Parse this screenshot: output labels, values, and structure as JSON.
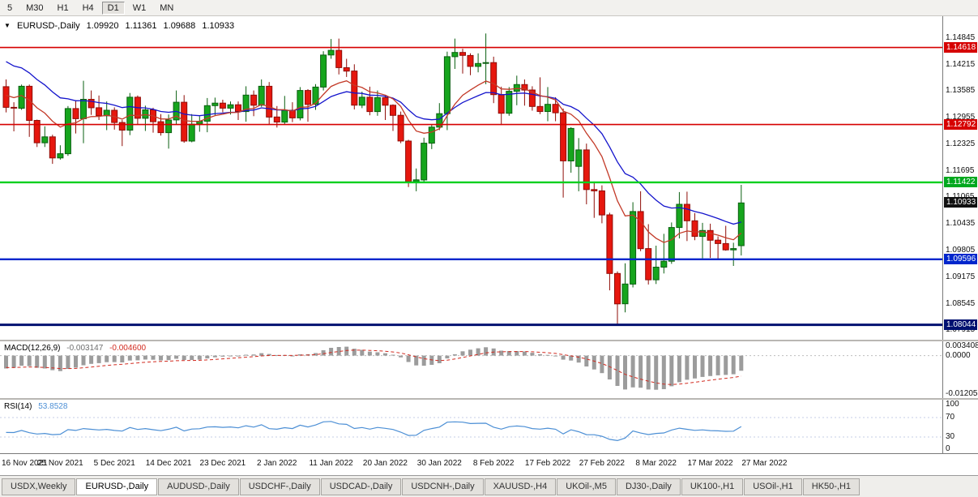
{
  "toolbar": {
    "timeframes": [
      {
        "label": "5",
        "active": false
      },
      {
        "label": "M30",
        "active": false
      },
      {
        "label": "H1",
        "active": false
      },
      {
        "label": "H4",
        "active": false
      },
      {
        "label": "D1",
        "active": true
      },
      {
        "label": "W1",
        "active": false
      },
      {
        "label": "MN",
        "active": false
      }
    ]
  },
  "chart_header": {
    "marker": "▼",
    "symbol": "EURUSD-,Daily",
    "open": "1.09920",
    "high": "1.11361",
    "low": "1.09688",
    "close": "1.10933"
  },
  "price_axis": {
    "labels": [
      "1.14845",
      "1.14215",
      "1.13585",
      "1.12955",
      "1.12325",
      "1.11695",
      "1.11065",
      "1.10435",
      "1.09805",
      "1.09175",
      "1.08545",
      "1.07915"
    ],
    "badges": [
      {
        "text": "1.14618",
        "color": "#D60000",
        "name": "resistance-badge-upper"
      },
      {
        "text": "1.12792",
        "color": "#D60000",
        "name": "resistance-badge-lower"
      },
      {
        "text": "1.11422",
        "color": "#00A81E",
        "name": "level-badge-green"
      },
      {
        "text": "1.10933",
        "color": "#111111",
        "name": "current-price-badge"
      },
      {
        "text": "1.09596",
        "color": "#0026CC",
        "name": "support-badge-blue"
      },
      {
        "text": "1.08044",
        "color": "#001070",
        "name": "support-badge-navy"
      }
    ]
  },
  "hlines": [
    {
      "price": 1.14618,
      "color": "#D60000",
      "width": 1.6
    },
    {
      "price": 1.12792,
      "color": "#D60000",
      "width": 1.6
    },
    {
      "price": 1.11422,
      "color": "#00D01E",
      "width": 2.4
    },
    {
      "price": 1.09596,
      "color": "#0026CC",
      "width": 2.4
    },
    {
      "price": 1.08044,
      "color": "#001070",
      "width": 3
    }
  ],
  "macd_panel": {
    "label": "MACD(12,26,9)",
    "value_main": "-0.003147",
    "value_signal": "-0.004600",
    "axis": [
      "0.003408",
      "0.0000",
      "-0.012058"
    ]
  },
  "rsi_panel": {
    "label": "RSI(14)",
    "value": "53.8528",
    "axis": [
      "100",
      "70",
      "30",
      "0"
    ],
    "levels": [
      70,
      30
    ]
  },
  "time_axis": {
    "labels": [
      "16 Nov 2021",
      "25 Nov 2021",
      "5 Dec 2021",
      "14 Dec 2021",
      "23 Dec 2021",
      "2 Jan 2022",
      "11 Jan 2022",
      "20 Jan 2022",
      "30 Jan 2022",
      "8 Feb 2022",
      "17 Feb 2022",
      "27 Feb 2022",
      "8 Mar 2022",
      "17 Mar 2022",
      "27 Mar 2022"
    ]
  },
  "tabs": [
    {
      "label": "USDX,Weekly",
      "active": false
    },
    {
      "label": "EURUSD-,Daily",
      "active": true
    },
    {
      "label": "AUDUSD-,Daily",
      "active": false
    },
    {
      "label": "USDCHF-,Daily",
      "active": false
    },
    {
      "label": "USDCAD-,Daily",
      "active": false
    },
    {
      "label": "USDCNH-,Daily",
      "active": false
    },
    {
      "label": "XAUUSD-,H4",
      "active": false
    },
    {
      "label": "UKOil-,M5",
      "active": false
    },
    {
      "label": "DJ30-,Daily",
      "active": false
    },
    {
      "label": "UK100-,H1",
      "active": false
    },
    {
      "label": "USOil-,H1",
      "active": false
    },
    {
      "label": "HK50-,H1",
      "active": false
    }
  ],
  "colors": {
    "up": "#16A51D",
    "up_dark": "#0A5F10",
    "down": "#E6170E",
    "down_dark": "#8F0D08",
    "macd_hist": "#9C9C9C",
    "macd_signal": "#D22B20",
    "rsi_line": "#4C8FD5",
    "rsi_level": "#C6CCE4"
  },
  "chart_data": {
    "type": "candlestick",
    "symbol": "EURUSD-",
    "timeframe": "Daily",
    "title": "EURUSD-,Daily  O 1.09920  H 1.11361  L 1.09688  C 1.10933",
    "price_range": [
      1.0769,
      1.1536
    ],
    "macd_range": [
      -0.0131,
      0.0044
    ],
    "rsi_range": [
      0,
      100
    ],
    "indicators": {
      "ma_fast": {
        "type": "ema",
        "period": 10,
        "seed": 1.1355,
        "color": "#C33A28"
      },
      "ma_slow": {
        "type": "ema",
        "period": 20,
        "seed": 1.144,
        "color": "#1414CC"
      },
      "macd": {
        "fast": 12,
        "slow": 26,
        "signal": 9,
        "seed_fast": 1.133,
        "seed_slow": 1.1372,
        "seed_signal": -0.0036
      },
      "rsi": {
        "period": 14,
        "seed_gain": 0.0022,
        "seed_loss": 0.0034
      }
    },
    "ohlc": [
      [
        "2021-11-16",
        1.1369,
        1.1386,
        1.1308,
        1.132
      ],
      [
        "2021-11-17",
        1.132,
        1.1332,
        1.1263,
        1.1318
      ],
      [
        "2021-11-18",
        1.1318,
        1.1374,
        1.1314,
        1.137
      ],
      [
        "2021-11-19",
        1.137,
        1.1374,
        1.125,
        1.1289
      ],
      [
        "2021-11-22",
        1.1289,
        1.1291,
        1.1226,
        1.1236
      ],
      [
        "2021-11-23",
        1.1236,
        1.1275,
        1.1226,
        1.125
      ],
      [
        "2021-11-24",
        1.125,
        1.1255,
        1.1186,
        1.12
      ],
      [
        "2021-11-25",
        1.12,
        1.123,
        1.1196,
        1.121
      ],
      [
        "2021-11-26",
        1.121,
        1.1323,
        1.1205,
        1.1317
      ],
      [
        "2021-11-29",
        1.1317,
        1.1337,
        1.1258,
        1.1293
      ],
      [
        "2021-11-30",
        1.1293,
        1.1383,
        1.1235,
        1.1339
      ],
      [
        "2021-12-01",
        1.1339,
        1.136,
        1.1302,
        1.1319
      ],
      [
        "2021-12-02",
        1.1319,
        1.1348,
        1.129,
        1.13
      ],
      [
        "2021-12-03",
        1.13,
        1.1334,
        1.1266,
        1.1313
      ],
      [
        "2021-12-06",
        1.1313,
        1.132,
        1.1267,
        1.1284
      ],
      [
        "2021-12-07",
        1.1284,
        1.129,
        1.1228,
        1.1266
      ],
      [
        "2021-12-08",
        1.1266,
        1.1354,
        1.1254,
        1.1344
      ],
      [
        "2021-12-09",
        1.1344,
        1.1348,
        1.128,
        1.1294
      ],
      [
        "2021-12-10",
        1.1294,
        1.1324,
        1.1264,
        1.1314
      ],
      [
        "2021-12-13",
        1.1314,
        1.1319,
        1.126,
        1.1286
      ],
      [
        "2021-12-14",
        1.1286,
        1.1304,
        1.1253,
        1.126
      ],
      [
        "2021-12-15",
        1.126,
        1.1303,
        1.1222,
        1.129
      ],
      [
        "2021-12-16",
        1.129,
        1.136,
        1.128,
        1.1332
      ],
      [
        "2021-12-17",
        1.1332,
        1.1349,
        1.1236,
        1.124
      ],
      [
        "2021-12-20",
        1.124,
        1.1304,
        1.1237,
        1.128
      ],
      [
        "2021-12-21",
        1.128,
        1.1299,
        1.1262,
        1.1287
      ],
      [
        "2021-12-22",
        1.1287,
        1.1342,
        1.1261,
        1.1324
      ],
      [
        "2021-12-23",
        1.1324,
        1.1343,
        1.1301,
        1.133
      ],
      [
        "2021-12-24",
        1.133,
        1.1338,
        1.1308,
        1.1318
      ],
      [
        "2021-12-27",
        1.1318,
        1.1334,
        1.1303,
        1.1326
      ],
      [
        "2021-12-28",
        1.1326,
        1.1334,
        1.129,
        1.131
      ],
      [
        "2021-12-29",
        1.131,
        1.137,
        1.1286,
        1.1349
      ],
      [
        "2021-12-30",
        1.1349,
        1.136,
        1.1299,
        1.1325
      ],
      [
        "2021-12-31",
        1.1325,
        1.1386,
        1.1321,
        1.137
      ],
      [
        "2022-01-03",
        1.137,
        1.138,
        1.1279,
        1.1297
      ],
      [
        "2022-01-04",
        1.1297,
        1.1323,
        1.1272,
        1.1285
      ],
      [
        "2022-01-05",
        1.1285,
        1.1347,
        1.128,
        1.1313
      ],
      [
        "2022-01-06",
        1.1313,
        1.1332,
        1.1285,
        1.1295
      ],
      [
        "2022-01-07",
        1.1295,
        1.1368,
        1.1289,
        1.136
      ],
      [
        "2022-01-10",
        1.136,
        1.1363,
        1.1286,
        1.1327
      ],
      [
        "2022-01-11",
        1.1327,
        1.1375,
        1.1314,
        1.1368
      ],
      [
        "2022-01-12",
        1.1368,
        1.1453,
        1.136,
        1.1444
      ],
      [
        "2022-01-13",
        1.1444,
        1.1482,
        1.1435,
        1.1455
      ],
      [
        "2022-01-14",
        1.1455,
        1.1483,
        1.1398,
        1.1414
      ],
      [
        "2022-01-17",
        1.1414,
        1.1435,
        1.1392,
        1.1406
      ],
      [
        "2022-01-18",
        1.1406,
        1.1422,
        1.1315,
        1.1325
      ],
      [
        "2022-01-19",
        1.1325,
        1.1357,
        1.1318,
        1.1344
      ],
      [
        "2022-01-20",
        1.1344,
        1.1369,
        1.1301,
        1.131
      ],
      [
        "2022-01-21",
        1.131,
        1.136,
        1.13,
        1.1343
      ],
      [
        "2022-01-24",
        1.1343,
        1.1349,
        1.129,
        1.1325
      ],
      [
        "2022-01-25",
        1.1325,
        1.1327,
        1.1264,
        1.1301
      ],
      [
        "2022-01-26",
        1.1301,
        1.131,
        1.1235,
        1.124
      ],
      [
        "2022-01-27",
        1.124,
        1.1243,
        1.1131,
        1.1144
      ],
      [
        "2022-01-28",
        1.1144,
        1.1175,
        1.1121,
        1.1148
      ],
      [
        "2022-01-31",
        1.1148,
        1.1248,
        1.1141,
        1.1235
      ],
      [
        "2022-02-01",
        1.1235,
        1.1279,
        1.1221,
        1.1273
      ],
      [
        "2022-02-02",
        1.1273,
        1.133,
        1.1266,
        1.1305
      ],
      [
        "2022-02-03",
        1.1305,
        1.1452,
        1.1266,
        1.144
      ],
      [
        "2022-02-04",
        1.144,
        1.1483,
        1.1411,
        1.145
      ],
      [
        "2022-02-07",
        1.145,
        1.1459,
        1.14,
        1.1443
      ],
      [
        "2022-02-08",
        1.1443,
        1.1448,
        1.1396,
        1.1417
      ],
      [
        "2022-02-09",
        1.1417,
        1.1448,
        1.1403,
        1.1424
      ],
      [
        "2022-02-10",
        1.1424,
        1.1495,
        1.1375,
        1.1426
      ],
      [
        "2022-02-11",
        1.1426,
        1.144,
        1.133,
        1.135
      ],
      [
        "2022-02-14",
        1.135,
        1.1369,
        1.1278,
        1.1306
      ],
      [
        "2022-02-15",
        1.1306,
        1.1368,
        1.13,
        1.1358
      ],
      [
        "2022-02-16",
        1.1358,
        1.1395,
        1.1325,
        1.1374
      ],
      [
        "2022-02-17",
        1.1374,
        1.1386,
        1.1324,
        1.1361
      ],
      [
        "2022-02-18",
        1.1361,
        1.137,
        1.1312,
        1.1322
      ],
      [
        "2022-02-21",
        1.1322,
        1.1391,
        1.1304,
        1.131
      ],
      [
        "2022-02-22",
        1.131,
        1.1368,
        1.1287,
        1.1327
      ],
      [
        "2022-02-23",
        1.1327,
        1.1344,
        1.1287,
        1.1307
      ],
      [
        "2022-02-24",
        1.1307,
        1.1317,
        1.1106,
        1.1193
      ],
      [
        "2022-02-25",
        1.1193,
        1.1273,
        1.1165,
        1.127
      ],
      [
        "2022-02-28",
        1.118,
        1.1247,
        1.1121,
        1.1219
      ],
      [
        "2022-03-01",
        1.1219,
        1.1234,
        1.109,
        1.1125
      ],
      [
        "2022-03-02",
        1.1125,
        1.1144,
        1.1058,
        1.1122
      ],
      [
        "2022-03-03",
        1.1122,
        1.1135,
        1.1045,
        1.1065
      ],
      [
        "2022-03-04",
        1.1065,
        1.107,
        1.0886,
        1.0926
      ],
      [
        "2022-03-07",
        1.0926,
        1.0931,
        1.0806,
        1.0854
      ],
      [
        "2022-03-08",
        1.0854,
        1.095,
        1.0834,
        1.0901
      ],
      [
        "2022-03-09",
        1.0901,
        1.1095,
        1.0893,
        1.1073
      ],
      [
        "2022-03-10",
        1.1073,
        1.1121,
        1.0979,
        1.0985
      ],
      [
        "2022-03-11",
        1.0985,
        1.1043,
        1.09,
        1.0911
      ],
      [
        "2022-03-14",
        1.0911,
        1.0992,
        1.0901,
        1.0941
      ],
      [
        "2022-03-15",
        1.0941,
        1.102,
        1.0926,
        1.0955
      ],
      [
        "2022-03-16",
        1.0955,
        1.1047,
        1.0949,
        1.1035
      ],
      [
        "2022-03-17",
        1.1035,
        1.1119,
        1.1009,
        1.109
      ],
      [
        "2022-03-18",
        1.109,
        1.112,
        1.1003,
        1.1051
      ],
      [
        "2022-03-21",
        1.1051,
        1.1069,
        1.1005,
        1.1014
      ],
      [
        "2022-03-22",
        1.1014,
        1.1046,
        1.0962,
        1.1028
      ],
      [
        "2022-03-23",
        1.1028,
        1.1044,
        1.0963,
        1.1005
      ],
      [
        "2022-03-24",
        1.1005,
        1.1014,
        1.096,
        1.0997
      ],
      [
        "2022-03-25",
        1.0997,
        1.1039,
        1.098,
        1.0982
      ],
      [
        "2022-03-28",
        1.0982,
        1.0999,
        1.0944,
        1.0985
      ],
      [
        "2022-03-29",
        1.0992,
        1.11361,
        1.09688,
        1.10933
      ]
    ]
  }
}
